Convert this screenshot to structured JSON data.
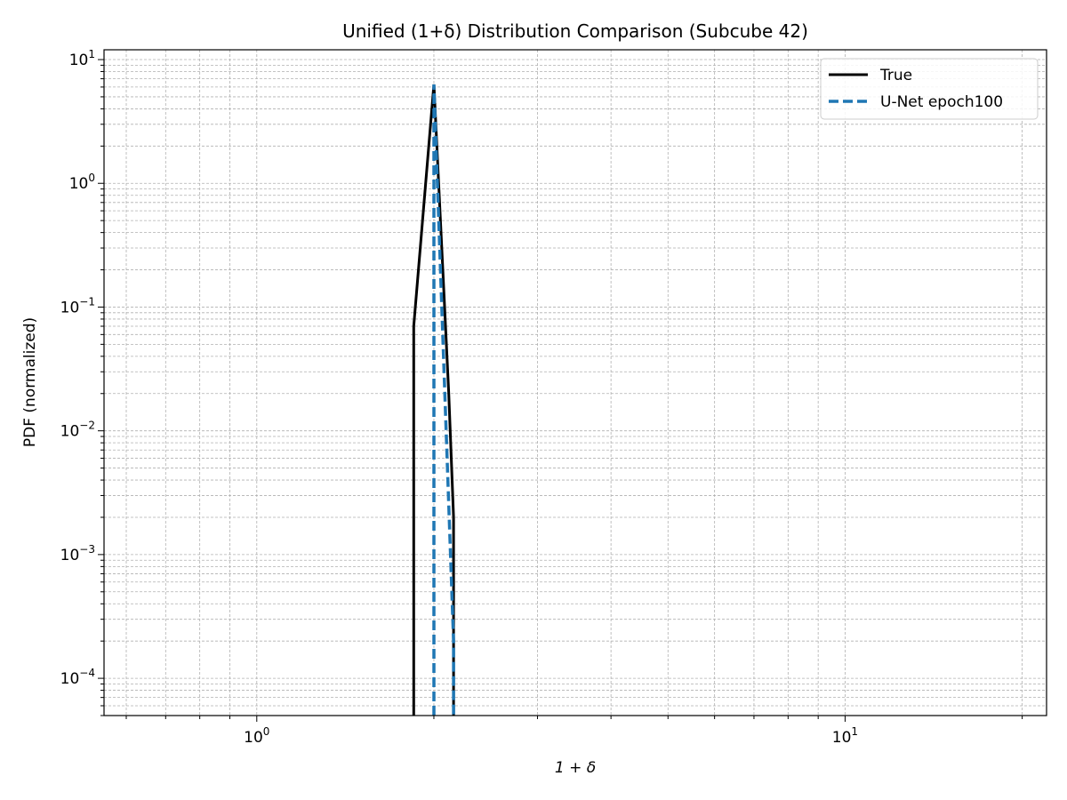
{
  "chart_data": {
    "type": "line",
    "title": "Unified (1+δ) Distribution Comparison (Subcube 42)",
    "xlabel": "1 + δ",
    "ylabel": "PDF (normalized)",
    "xscale": "log",
    "yscale": "log",
    "xlim": [
      0.55,
      22
    ],
    "ylim": [
      5e-05,
      12
    ],
    "grid": true,
    "legend": "top-right",
    "x_ticks": [
      {
        "value": 1,
        "base": "10",
        "exp": "0"
      },
      {
        "value": 10,
        "base": "10",
        "exp": "1"
      }
    ],
    "y_ticks": [
      {
        "value": 0.0001,
        "base": "10",
        "exp": "−4"
      },
      {
        "value": 0.001,
        "base": "10",
        "exp": "−3"
      },
      {
        "value": 0.01,
        "base": "10",
        "exp": "−2"
      },
      {
        "value": 0.1,
        "base": "10",
        "exp": "−1"
      },
      {
        "value": 1,
        "base": "10",
        "exp": "0"
      },
      {
        "value": 10,
        "base": "10",
        "exp": "1"
      }
    ],
    "series": [
      {
        "name": "True",
        "color": "#000000",
        "style": "solid",
        "x": [
          1.848,
          1.848,
          2.0,
          2.12,
          2.16,
          2.16
        ],
        "y": [
          5e-05,
          0.07,
          6.3,
          0.02,
          0.002,
          5e-05
        ]
      },
      {
        "name": "U-Net epoch100",
        "color": "#1f77b4",
        "style": "dashed",
        "x": [
          2.0,
          2.0,
          2.16,
          2.16
        ],
        "y": [
          5e-05,
          6.3,
          0.0002,
          5e-05
        ]
      }
    ]
  }
}
